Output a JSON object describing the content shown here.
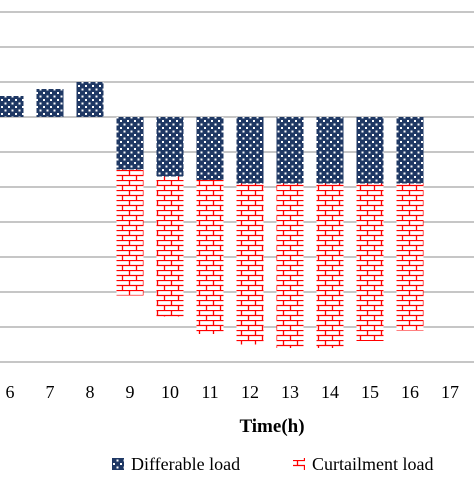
{
  "chart_data": {
    "type": "bar",
    "stacked": true,
    "categories": [
      "6",
      "7",
      "8",
      "9",
      "10",
      "11",
      "12",
      "13",
      "14",
      "15",
      "16",
      "17"
    ],
    "series": [
      {
        "name": "Differable load",
        "values": [
          0.6,
          0.8,
          1.0,
          -1.5,
          -1.7,
          -1.8,
          -1.9,
          -1.9,
          -1.9,
          -1.9,
          -1.9,
          null
        ],
        "color": "#1f3864",
        "pattern": "dots"
      },
      {
        "name": "Curtailment load",
        "values": [
          0,
          0,
          0,
          -3.6,
          -4.0,
          -4.4,
          -4.6,
          -4.7,
          -4.7,
          -4.5,
          -4.2,
          null
        ],
        "color": "#ff0000",
        "pattern": "bricks"
      }
    ],
    "xlabel": "Time(h)",
    "ylabel": "",
    "ylim": [
      -7,
      3
    ],
    "grid": true,
    "legend": "bottom"
  }
}
